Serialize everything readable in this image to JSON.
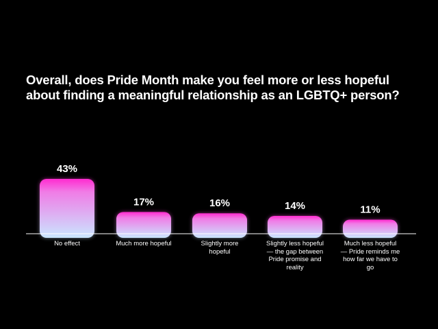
{
  "title_lines": [
    "Overall, does Pride Month make you feel more or less hopeful",
    "about finding a meaningful relationship as an LGBTQ+ person?"
  ],
  "colors": {
    "background": "#000000",
    "text": "#ffffff",
    "bar_top": "#ff2bd0",
    "bar_bottom": "#c9e6ff",
    "axis": "#ffffff"
  },
  "chart_data": {
    "type": "bar",
    "title": "Overall, does Pride Month make you feel more or less hopeful about finding a meaningful relationship as an LGBTQ+ person?",
    "categories": [
      "No effect",
      "Much more hopeful",
      "Slightly more hopeful",
      "Slightly less hopeful — the gap between Pride promise and reality",
      "Much less hopeful — Pride reminds me how far we have to go"
    ],
    "values": [
      43,
      17,
      16,
      14,
      11
    ],
    "value_labels": [
      "43%",
      "17%",
      "16%",
      "14%",
      "11%"
    ],
    "unit": "%",
    "ylim": [
      0,
      43
    ],
    "grid": false,
    "legend": "none"
  }
}
